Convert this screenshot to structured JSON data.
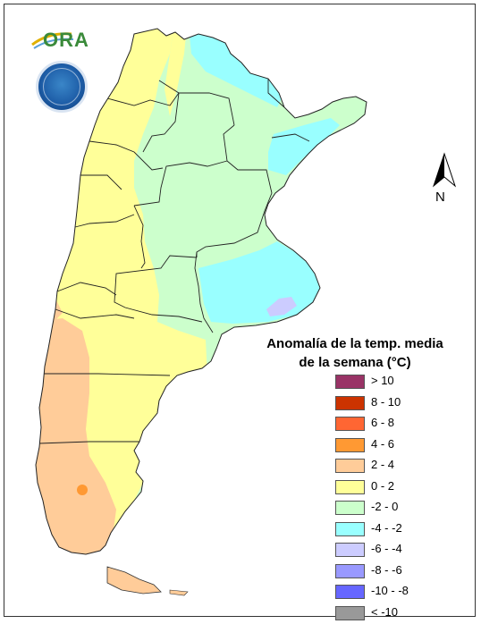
{
  "legend": {
    "title_line1": "Anomalía de la temp. media",
    "title_line2": "de la semana (°C)",
    "items": [
      {
        "label": "> 10",
        "color": "#993366"
      },
      {
        "label": "8 - 10",
        "color": "#cc3300"
      },
      {
        "label": "6 - 8",
        "color": "#ff6633"
      },
      {
        "label": "4 - 6",
        "color": "#ff9933"
      },
      {
        "label": "2 - 4",
        "color": "#ffcc99"
      },
      {
        "label": "0 - 2",
        "color": "#ffff99"
      },
      {
        "label": "-2 - 0",
        "color": "#ccffcc"
      },
      {
        "label": "-4 - -2",
        "color": "#99ffff"
      },
      {
        "label": "-6 - -4",
        "color": "#ccccff"
      },
      {
        "label": "-8 - -6",
        "color": "#9999ff"
      },
      {
        "label": "-10 - -8",
        "color": "#6666ff"
      },
      {
        "label": "< -10",
        "color": "#999999"
      }
    ]
  },
  "north_arrow": {
    "label": "N",
    "icon": "north-arrow-icon"
  },
  "logos": {
    "ora_text": "ORA",
    "smn_icon": "smn-seal-icon"
  }
}
